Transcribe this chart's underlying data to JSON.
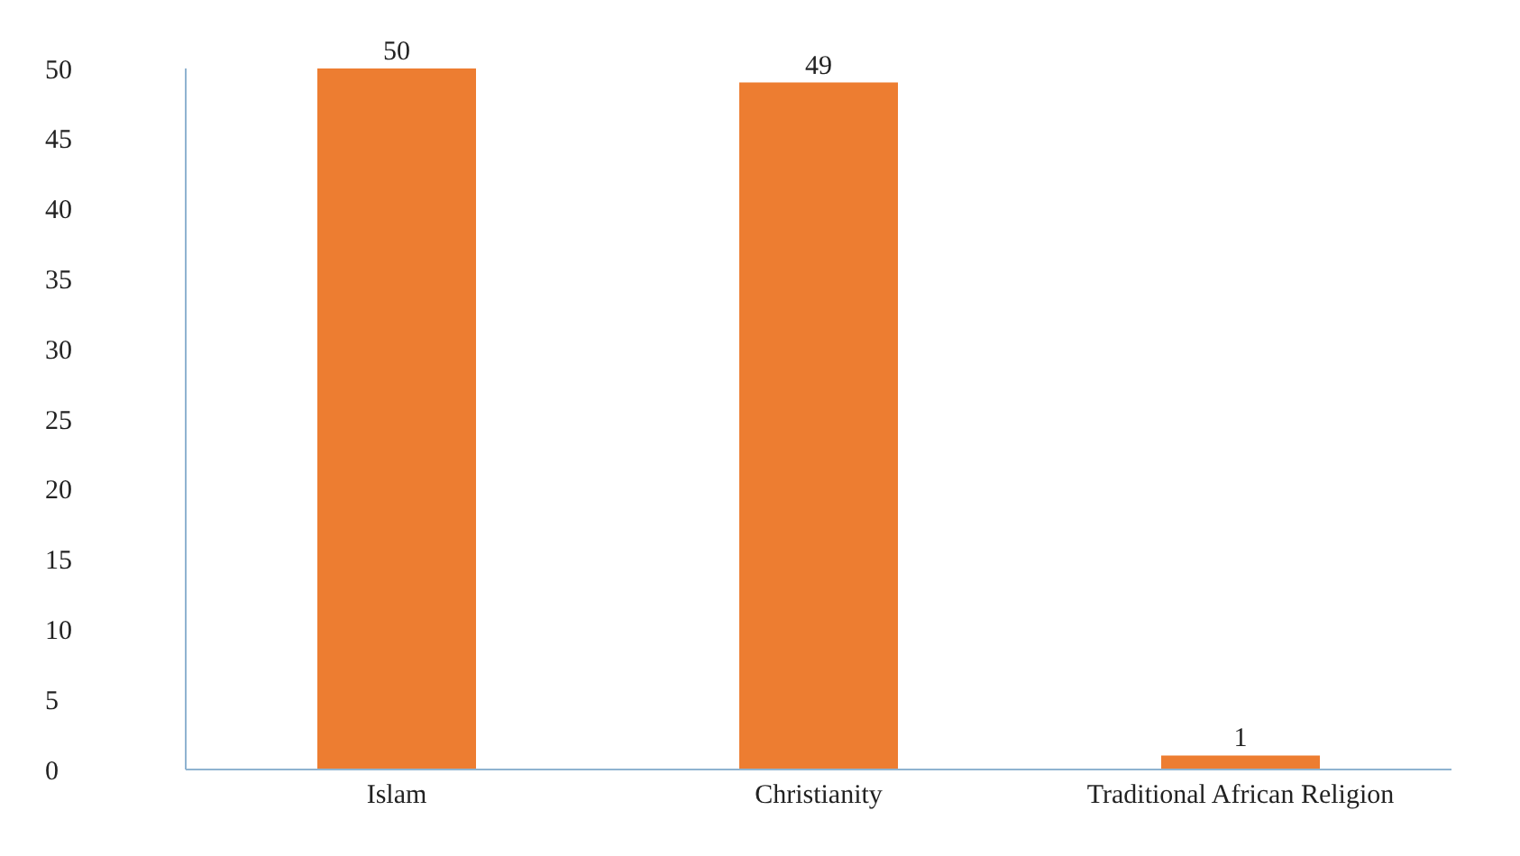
{
  "chart_data": {
    "type": "bar",
    "categories": [
      "Islam",
      "Christianity",
      "Traditional African Religion"
    ],
    "values": [
      50,
      49,
      1
    ],
    "color": "#ed7d31",
    "ylim": [
      0,
      50
    ],
    "yticks": [
      0,
      5,
      10,
      15,
      20,
      25,
      30,
      35,
      40,
      45,
      50
    ],
    "grid": false,
    "data_labels": true
  }
}
